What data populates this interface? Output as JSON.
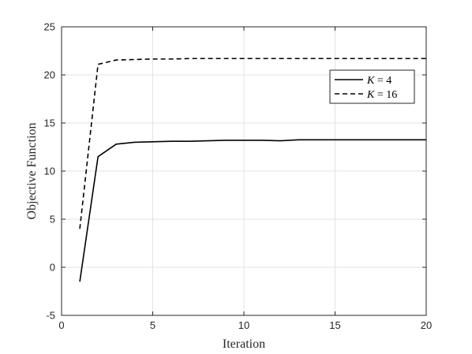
{
  "chart_data": {
    "type": "line",
    "title": "",
    "xlabel": "Iteration",
    "ylabel": "Objective Function",
    "xlim": [
      0,
      20
    ],
    "ylim": [
      -5,
      25
    ],
    "xticks": [
      0,
      5,
      10,
      15,
      20
    ],
    "yticks": [
      -5,
      0,
      5,
      10,
      15,
      20,
      25
    ],
    "grid": true,
    "legend_position": "top-right",
    "x": [
      1,
      2,
      3,
      4,
      5,
      6,
      7,
      8,
      9,
      10,
      11,
      12,
      13,
      14,
      15,
      16,
      17,
      18,
      19,
      20
    ],
    "series": [
      {
        "name_var": "K",
        "name_rest": " = 4",
        "style": "solid",
        "color": "#000000",
        "values": [
          -1.5,
          11.5,
          12.8,
          13.0,
          13.05,
          13.1,
          13.1,
          13.15,
          13.2,
          13.2,
          13.2,
          13.15,
          13.25,
          13.25,
          13.25,
          13.25,
          13.25,
          13.25,
          13.25,
          13.25
        ]
      },
      {
        "name_var": "K",
        "name_rest": " = 16",
        "style": "dashed",
        "color": "#000000",
        "values": [
          4.0,
          21.1,
          21.55,
          21.6,
          21.65,
          21.65,
          21.7,
          21.7,
          21.7,
          21.7,
          21.7,
          21.7,
          21.7,
          21.7,
          21.7,
          21.7,
          21.7,
          21.7,
          21.7,
          21.7
        ]
      }
    ]
  }
}
